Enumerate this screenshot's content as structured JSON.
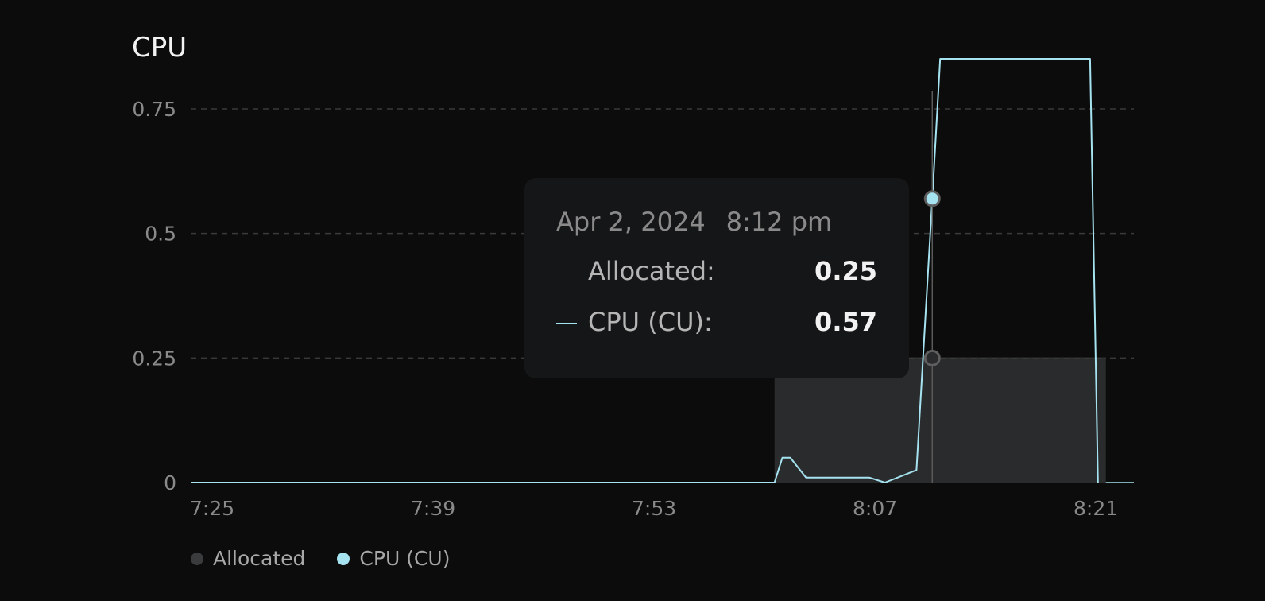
{
  "chart_data": {
    "type": "area",
    "title": "CPU",
    "xlabel": "",
    "ylabel": "",
    "ylim": [
      0,
      0.85
    ],
    "y_ticks": [
      0,
      0.25,
      0.5,
      0.75
    ],
    "y_tick_labels": [
      "0",
      "0.25",
      "0.5",
      "0.75"
    ],
    "x_range": [
      "7:25",
      "8:23"
    ],
    "x_tick_labels": [
      "7:25",
      "7:39",
      "7:53",
      "8:07",
      "8:21"
    ],
    "grid": "horizontal dashed",
    "legend_position": "bottom-left",
    "series": [
      {
        "name": "Allocated",
        "color": "#2a2b2c",
        "x": [
          "8:02",
          "8:23"
        ],
        "values": [
          0.25,
          0.25
        ]
      },
      {
        "name": "CPU (CU)",
        "color": "#a6e3f0",
        "x": [
          "7:25",
          "7:48",
          "8:02",
          "8:02:30",
          "8:03",
          "8:04",
          "8:08",
          "8:09",
          "8:11",
          "8:12",
          "8:12:30",
          "8:22",
          "8:22:30"
        ],
        "values": [
          0,
          0,
          0,
          0.05,
          0.05,
          0.01,
          0.01,
          0,
          0.025,
          0.57,
          0.9,
          0.9,
          0
        ]
      }
    ],
    "cursor": {
      "x": "8:12",
      "values": {
        "Allocated": 0.25,
        "CPU (CU)": 0.57
      }
    }
  },
  "tooltip": {
    "date": "Apr 2, 2024",
    "time": "8:12 pm",
    "rows": [
      {
        "label": "Allocated:",
        "value": "0.25"
      },
      {
        "label": "CPU (CU):",
        "value": "0.57"
      }
    ]
  },
  "legend": {
    "items": [
      {
        "label": "Allocated",
        "color": "#3a3b3c"
      },
      {
        "label": "CPU (CU)",
        "color": "#a6e3f0"
      }
    ]
  }
}
